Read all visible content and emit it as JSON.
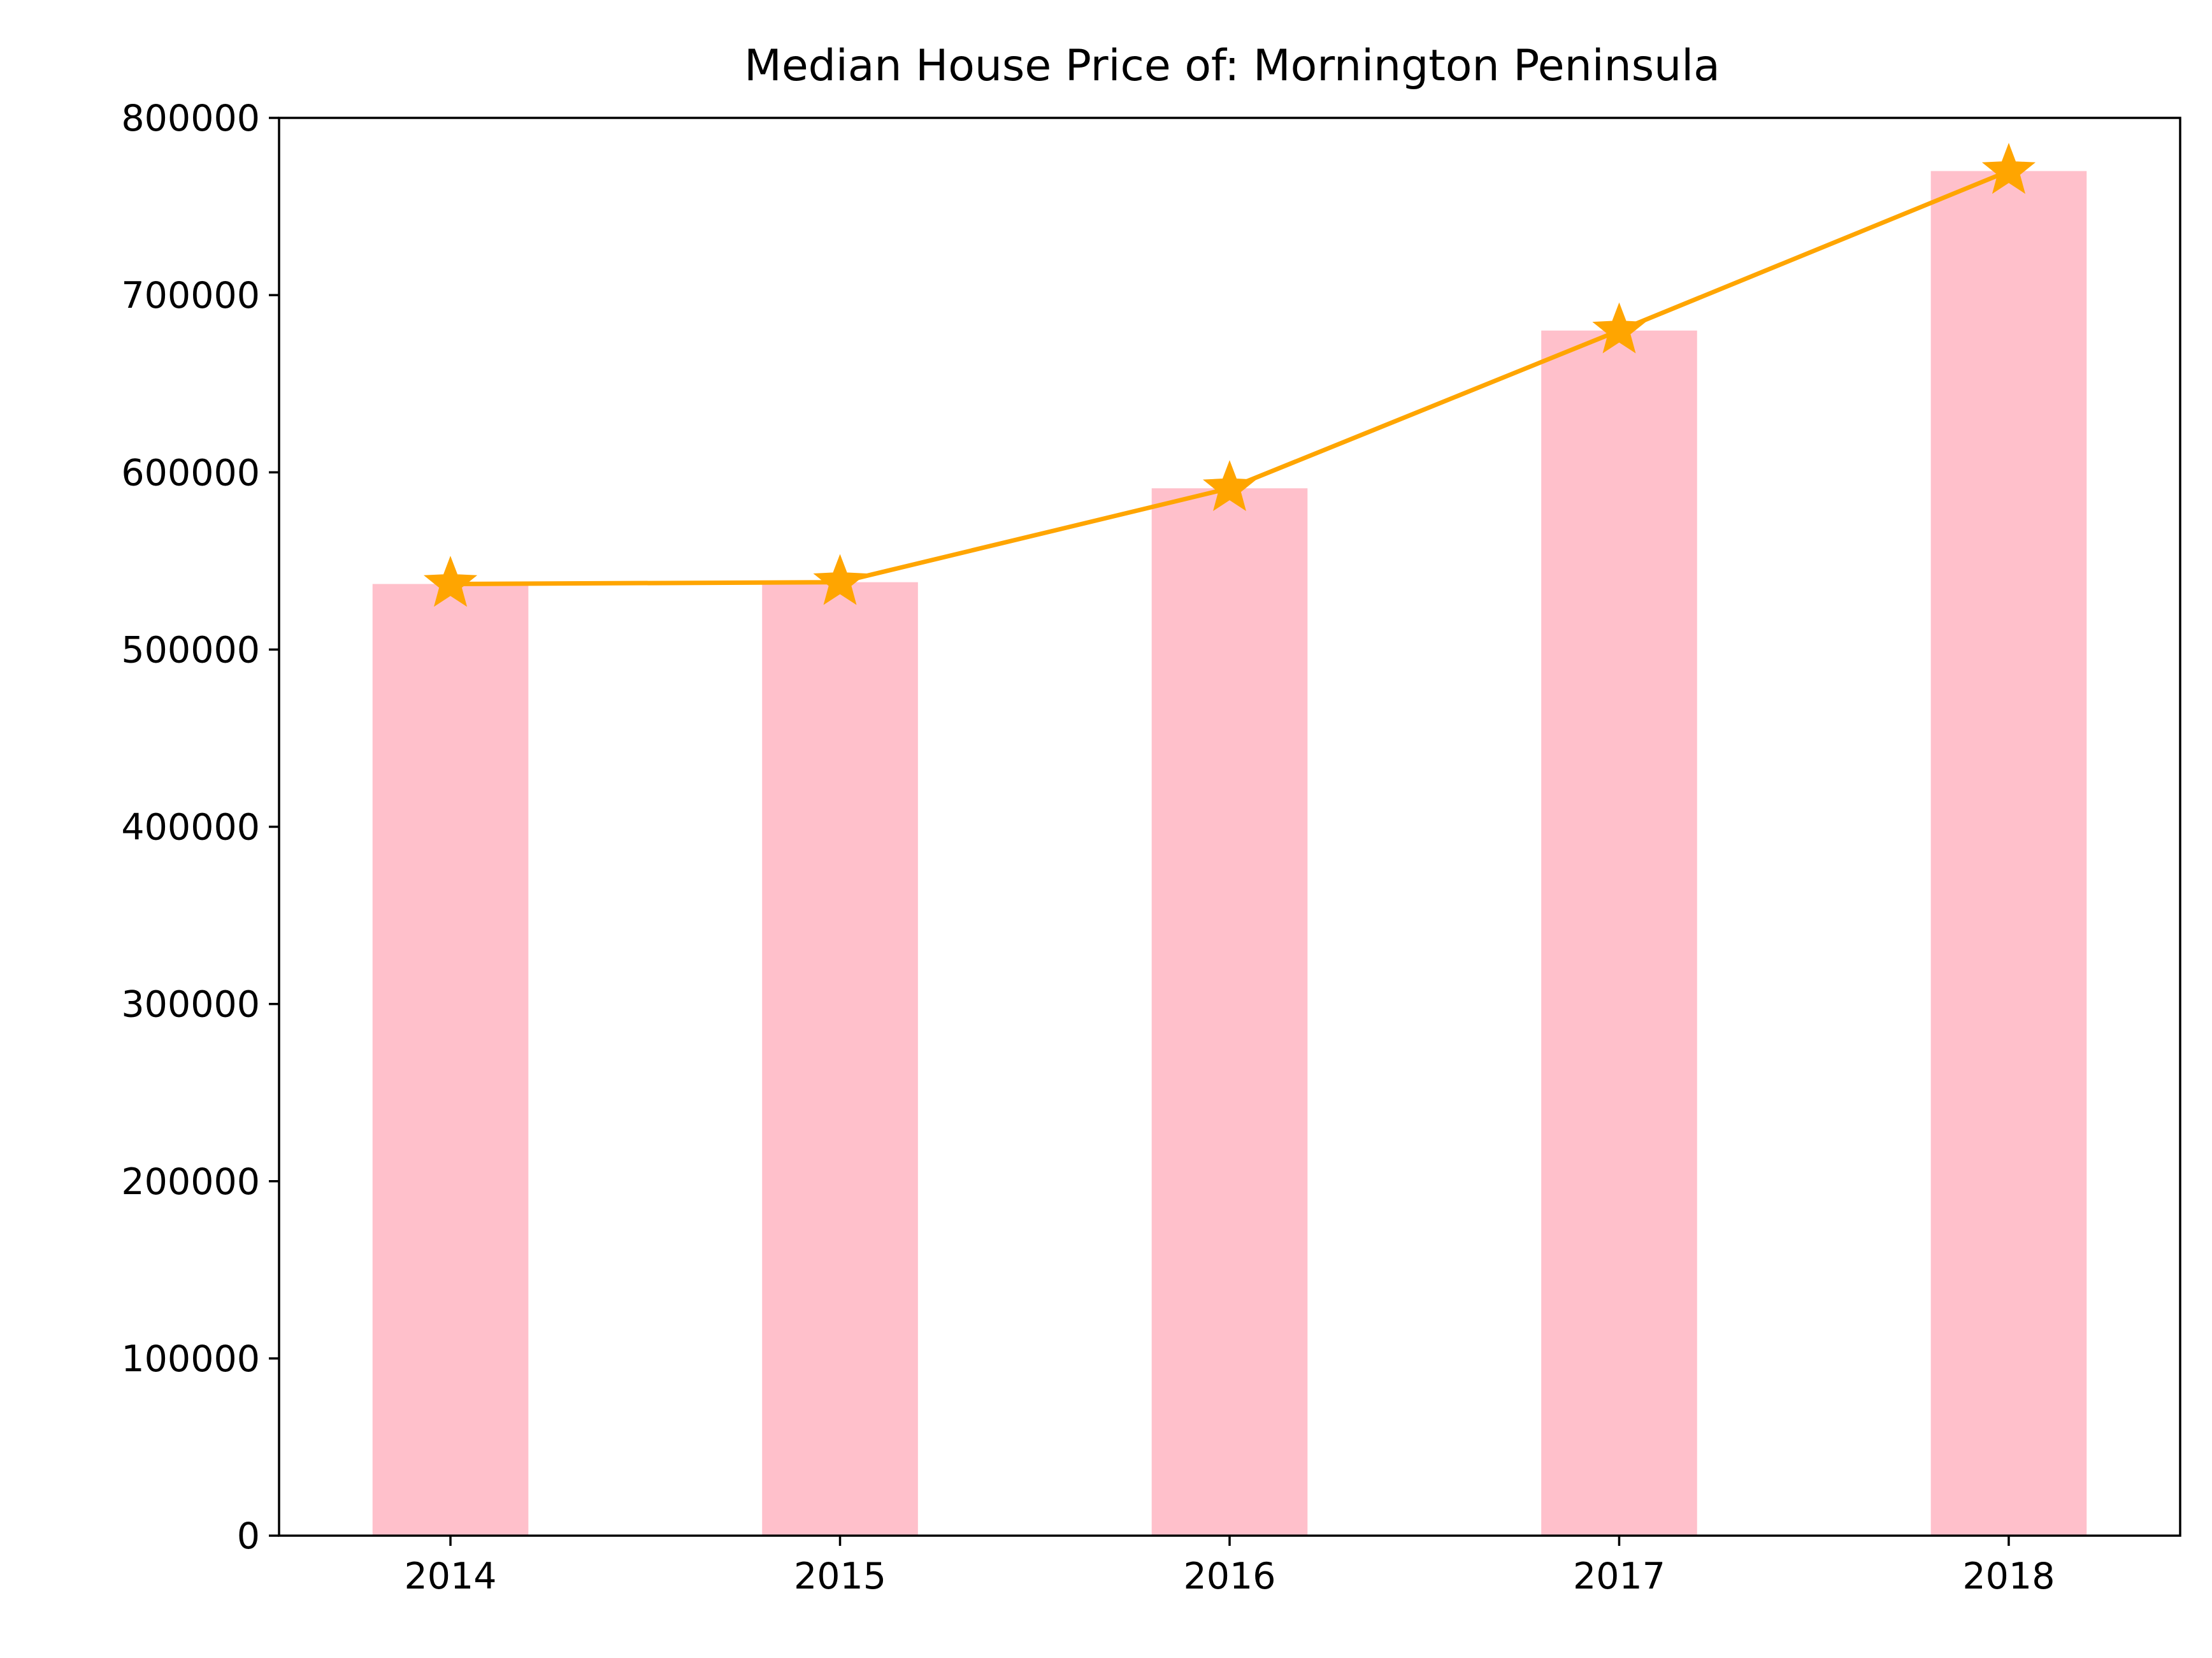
{
  "chart_data": {
    "type": "bar",
    "title": "Median House Price of: Mornington Peninsula",
    "xlabel": "",
    "ylabel": "",
    "categories": [
      "2014",
      "2015",
      "2016",
      "2017",
      "2018"
    ],
    "ylim": [
      0,
      800000
    ],
    "yticks": [
      0,
      100000,
      200000,
      300000,
      400000,
      500000,
      600000,
      700000,
      800000
    ],
    "ytick_labels": [
      "0",
      "100000",
      "200000",
      "300000",
      "400000",
      "500000",
      "600000",
      "700000",
      "800000"
    ],
    "grid": false,
    "series": [
      {
        "kind": "bar",
        "values": [
          537000,
          538000,
          591000,
          680000,
          770000
        ],
        "color": "#ffc0cb"
      },
      {
        "kind": "line",
        "marker": "star",
        "values": [
          537000,
          538000,
          591000,
          680000,
          770000
        ],
        "color": "#ffa500"
      }
    ]
  }
}
